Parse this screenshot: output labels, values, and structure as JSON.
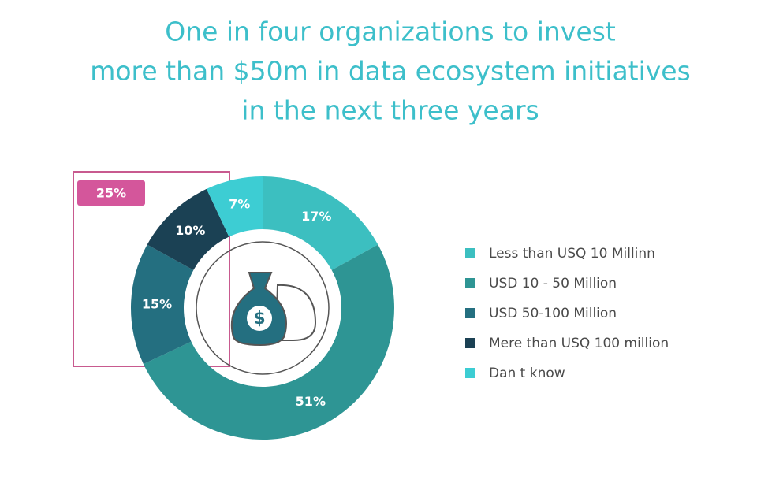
{
  "chart_data": {
    "type": "donut",
    "title": [
      "One in four organizations to invest",
      "more than $50m in data ecosystem initiatives",
      "in the next three years"
    ],
    "categories": [
      "Less than USQ 10 Millinn",
      "USD 10 - 50 Million",
      "USD 50-100 Million",
      "Mere than USQ 100 million",
      "Dan t know"
    ],
    "values": [
      17,
      51,
      15,
      10,
      7
    ],
    "value_labels": [
      "17%",
      "51%",
      "15%",
      "10%",
      "7%"
    ],
    "colors": [
      "#3cbfc0",
      "#2e9594",
      "#246f80",
      "#1b4154",
      "#3dcdd3"
    ],
    "annotation": "25%"
  }
}
